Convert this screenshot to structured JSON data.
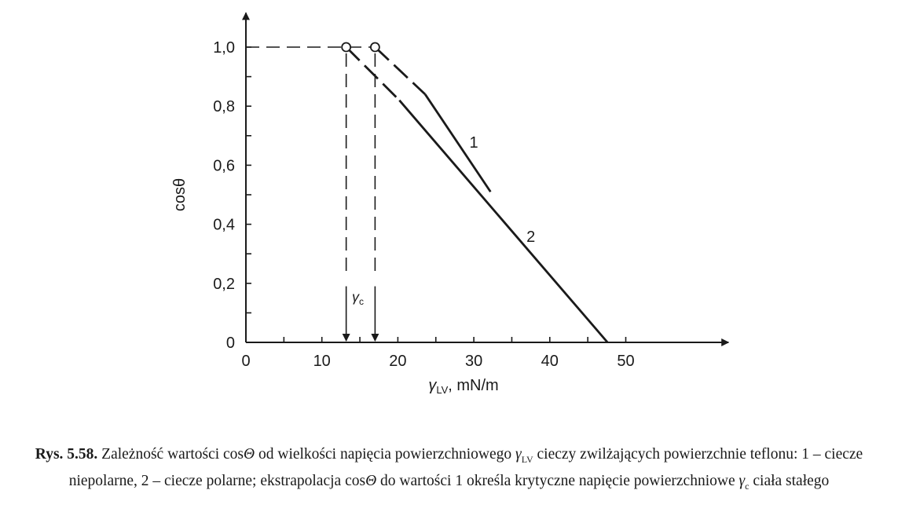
{
  "chart_data": {
    "type": "line",
    "xlabel_symbol": "γ",
    "xlabel_sub": "LV",
    "xlabel_unit": ", mN/m",
    "ylabel": "cosθ",
    "xlim": [
      0,
      60
    ],
    "ylim": [
      0,
      1.1
    ],
    "x_ticks": [
      0,
      10,
      20,
      30,
      40,
      50
    ],
    "x_tick_labels": [
      "0",
      "10",
      "20",
      "30",
      "40",
      "50"
    ],
    "y_ticks": [
      0,
      0.2,
      0.4,
      0.6,
      0.8,
      1.0
    ],
    "y_tick_labels": [
      "0",
      "0,2",
      "0,4",
      "0,6",
      "0,8",
      "1,0"
    ],
    "grid": false,
    "series": [
      {
        "name": "1",
        "solid": [
          [
            23.6,
            0.84
          ],
          [
            32.2,
            0.51
          ]
        ],
        "extrapolated": [
          [
            17,
            1.0
          ],
          [
            23.6,
            0.84
          ]
        ],
        "label_at": [
          30,
          0.66
        ]
      },
      {
        "name": "2",
        "solid": [
          [
            20.2,
            0.82
          ],
          [
            47.6,
            0.0
          ]
        ],
        "extrapolated": [
          [
            13.2,
            1.0
          ],
          [
            20.2,
            0.82
          ]
        ],
        "label_at": [
          37.5,
          0.34
        ]
      }
    ],
    "annotations": {
      "gamma_c_symbol": "γ",
      "gamma_c_sub": "c",
      "critical_points": [
        13.2,
        17.0
      ],
      "reference_level": 1.0
    }
  },
  "caption": {
    "label": "Rys. 5.58.",
    "part1": " Zależność wartości cos",
    "theta": "Θ",
    "part2": " od wielkości napięcia powierzchniowego ",
    "gamma": "γ",
    "gamma_sub": "LV",
    "part3": " cieczy  zwilżających powierzchnie teflonu: 1 – ciecze niepolarne, 2 – ciecze polarne; ekstrapolacja cos",
    "part4": " do wartości 1 określa krytyczne  napięcie powierzchniowe ",
    "gamma_c_sub": "c",
    "part5": " ciała  stałego"
  }
}
